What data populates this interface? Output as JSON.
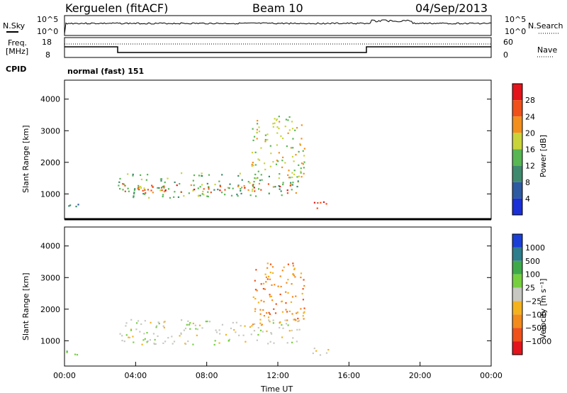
{
  "header": {
    "station": "Kerguelen (fitACF)",
    "beam": "Beam 10",
    "date": "04/Sep/2013"
  },
  "noise_panel": {
    "left_label": "N.Sky",
    "left_top": "10^5",
    "left_bottom": "10^0",
    "right_label": "N.Search",
    "right_top": "10^5",
    "right_bottom": "10^0"
  },
  "freq_panel": {
    "left_label_1": "Freq.",
    "left_label_2": "[MHz]",
    "left_top": "18",
    "left_bottom": "8",
    "right_label": "Nave",
    "right_top": "60",
    "right_bottom": "0"
  },
  "cpid_panel": {
    "label": "CPID",
    "value": "normal (fast) 151"
  },
  "chart_data": [
    {
      "type": "heatmap",
      "name": "power",
      "ylabel": "Slant Range [km]",
      "colorbar_label": "Power [dB]",
      "ylim": [
        200,
        4600
      ],
      "yticks": [
        1000,
        2000,
        3000,
        4000
      ],
      "colorbar_ticks": [
        "4",
        "8",
        "12",
        "16",
        "20",
        "24",
        "28"
      ],
      "colors": [
        "#1a2fd6",
        "#2d5aa0",
        "#3f8a6e",
        "#58b653",
        "#c9d43a",
        "#f28f1d",
        "#f0501a",
        "#e3141b"
      ],
      "blobs": [
        {
          "t0": 3.0,
          "t1": 13.2,
          "r0": 900,
          "r1": 1700,
          "level": 3
        },
        {
          "t0": 3.2,
          "t1": 13.0,
          "r0": 1050,
          "r1": 1350,
          "level": 6
        },
        {
          "t0": 13.6,
          "t1": 14.8,
          "r0": 550,
          "r1": 850,
          "level": 7
        },
        {
          "t0": 10.5,
          "t1": 13.5,
          "r0": 1500,
          "r1": 3500,
          "level": 4
        },
        {
          "t0": 0.0,
          "t1": 0.8,
          "r0": 400,
          "r1": 700,
          "level": 2
        }
      ]
    },
    {
      "type": "heatmap",
      "name": "velocity",
      "ylabel": "Slant Range [km]",
      "xlabel": "Time UT",
      "colorbar_label": "Velocity [m s⁻¹]",
      "ylim": [
        200,
        4600
      ],
      "yticks": [
        1000,
        2000,
        3000,
        4000
      ],
      "xticks": [
        "00:00",
        "04:00",
        "08:00",
        "12:00",
        "16:00",
        "20:00",
        "00:00"
      ],
      "colorbar_ticks": [
        "1000",
        "500",
        "100",
        "25",
        "−25",
        "−100",
        "−500",
        "−1000"
      ],
      "colors": [
        "#1a3fd6",
        "#2e7d8c",
        "#3fa94a",
        "#76cf3f",
        "#c8c8c2",
        "#f4b21e",
        "#f28a1c",
        "#f0501a",
        "#e3141b"
      ],
      "blobs": [
        {
          "t0": 3.0,
          "t1": 13.2,
          "r0": 900,
          "r1": 1700,
          "level": 4
        },
        {
          "t0": 10.5,
          "t1": 13.5,
          "r0": 1500,
          "r1": 3500,
          "level": 6
        },
        {
          "t0": 13.6,
          "t1": 14.8,
          "r0": 550,
          "r1": 850,
          "level": 4
        },
        {
          "t0": 0.0,
          "t1": 0.8,
          "r0": 400,
          "r1": 700,
          "level": 3
        }
      ]
    }
  ]
}
